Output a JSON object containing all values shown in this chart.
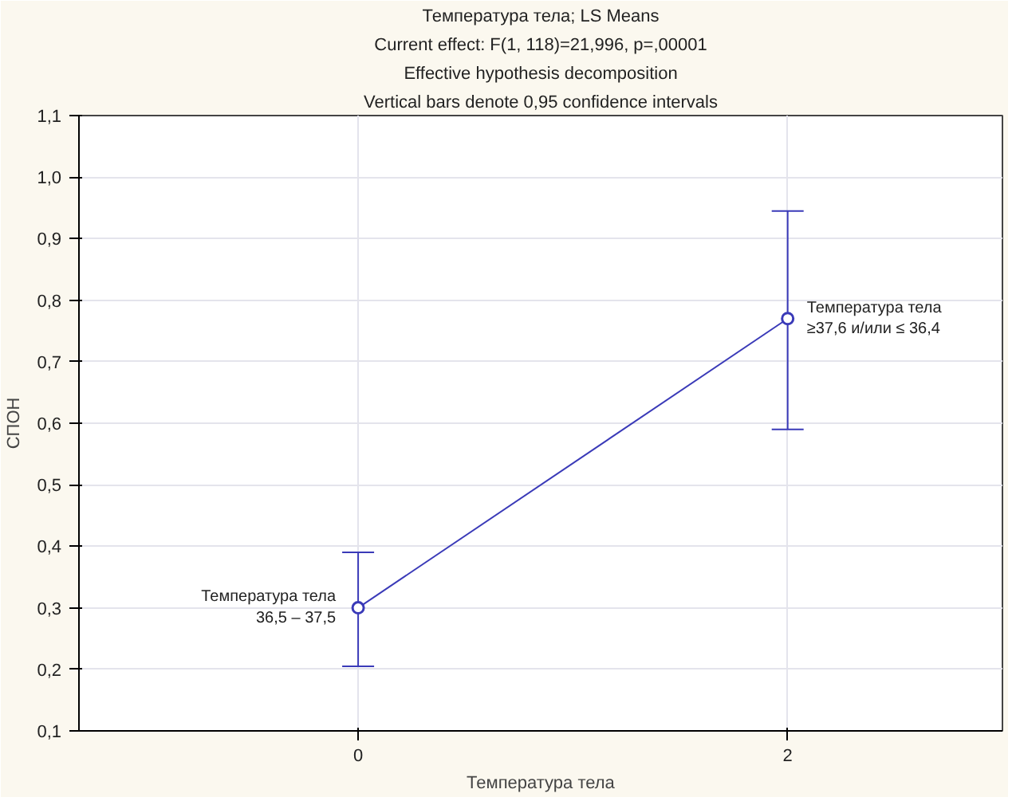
{
  "chart_data": {
    "type": "line",
    "title": "Температура тела; LS Means",
    "subtitle": "Current effect: F(1, 118)=21,996, p=,00001",
    "annotations": [
      "Effective hypothesis decomposition",
      "Vertical bars denote 0,95 confidence intervals",
      {
        "text": "Температура тела\n36,5 – 37,5",
        "x": 0,
        "y": 0.3
      },
      {
        "text": "Температура тела\n≥37,6 и/или ≤ 36,4",
        "x": 2,
        "y": 0.77
      }
    ],
    "xlabel": "Температура тела",
    "ylabel": "СПОН",
    "x": [
      0,
      2
    ],
    "series": [
      {
        "color": "#3a3ab8",
        "values": [
          0.3,
          0.77
        ],
        "errors": [
          [
            0.205,
            0.39
          ],
          [
            0.59,
            0.945
          ]
        ]
      }
    ],
    "xlim": [
      -1.3,
      3.0
    ],
    "xticks": [
      0,
      2
    ],
    "ylim": [
      0.1,
      1.1
    ],
    "yticks": [
      {
        "value": 0.1,
        "label": "0,1"
      },
      {
        "value": 0.2,
        "label": "0,2"
      },
      {
        "value": 0.3,
        "label": "0,3"
      },
      {
        "value": 0.4,
        "label": "0,4"
      },
      {
        "value": 0.5,
        "label": "0,5"
      },
      {
        "value": 0.6,
        "label": "0,6"
      },
      {
        "value": 0.7,
        "label": "0,7"
      },
      {
        "value": 0.8,
        "label": "0,8"
      },
      {
        "value": 0.9,
        "label": "0,9"
      },
      {
        "value": 1.0,
        "label": "1,0"
      },
      {
        "value": 1.1,
        "label": "1,1"
      }
    ],
    "grid": true,
    "marker": "circle",
    "line_style": "solid"
  }
}
